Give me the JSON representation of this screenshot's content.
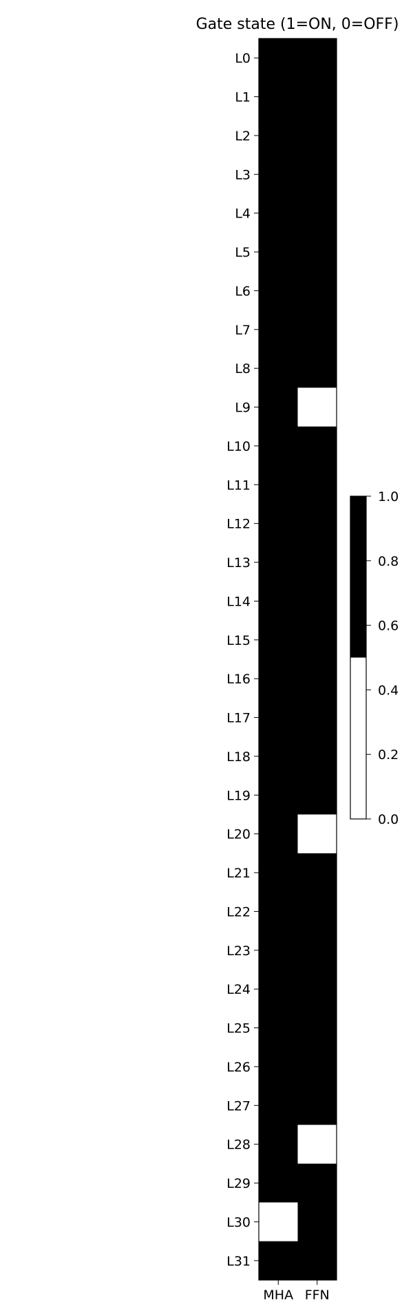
{
  "chart_data": {
    "type": "heatmap",
    "title": "Gate state (1=ON, 0=OFF)",
    "columns": [
      "MHA",
      "FFN"
    ],
    "rows": [
      "L0",
      "L1",
      "L2",
      "L3",
      "L4",
      "L5",
      "L6",
      "L7",
      "L8",
      "L9",
      "L10",
      "L11",
      "L12",
      "L13",
      "L14",
      "L15",
      "L16",
      "L17",
      "L18",
      "L19",
      "L20",
      "L21",
      "L22",
      "L23",
      "L24",
      "L25",
      "L26",
      "L27",
      "L28",
      "L29",
      "L30",
      "L31"
    ],
    "values": [
      [
        1,
        1
      ],
      [
        1,
        1
      ],
      [
        1,
        1
      ],
      [
        1,
        1
      ],
      [
        1,
        1
      ],
      [
        1,
        1
      ],
      [
        1,
        1
      ],
      [
        1,
        1
      ],
      [
        1,
        1
      ],
      [
        1,
        0
      ],
      [
        1,
        1
      ],
      [
        1,
        1
      ],
      [
        1,
        1
      ],
      [
        1,
        1
      ],
      [
        1,
        1
      ],
      [
        1,
        1
      ],
      [
        1,
        1
      ],
      [
        1,
        1
      ],
      [
        1,
        1
      ],
      [
        1,
        1
      ],
      [
        1,
        0
      ],
      [
        1,
        1
      ],
      [
        1,
        1
      ],
      [
        1,
        1
      ],
      [
        1,
        1
      ],
      [
        1,
        1
      ],
      [
        1,
        1
      ],
      [
        1,
        1
      ],
      [
        1,
        0
      ],
      [
        1,
        1
      ],
      [
        0,
        1
      ],
      [
        1,
        1
      ]
    ],
    "colormap": {
      "on_color": "#000000",
      "off_color": "#ffffff",
      "threshold": 0.5
    },
    "colorbar": {
      "range": [
        0.0,
        1.0
      ],
      "ticks": [
        0.0,
        0.2,
        0.4,
        0.6,
        0.8,
        1.0
      ],
      "tick_labels": [
        "0.0",
        "0.2",
        "0.4",
        "0.6",
        "0.8",
        "1.0"
      ]
    }
  }
}
